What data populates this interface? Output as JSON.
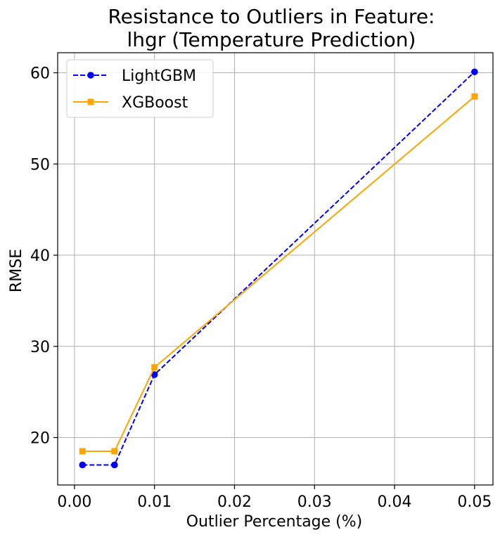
{
  "chart_data": {
    "type": "line",
    "title_line1": "Resistance to Outliers in Feature:",
    "title_line2": "lhgr (Temperature Prediction)",
    "xlabel": "Outlier Percentage (%)",
    "ylabel": "RMSE",
    "xlim": [
      -0.0021,
      0.0523
    ],
    "ylim": [
      14.8,
      62.2
    ],
    "xticks": [
      0.0,
      0.01,
      0.02,
      0.03,
      0.04,
      0.05
    ],
    "xtick_labels": [
      "0.00",
      "0.01",
      "0.02",
      "0.03",
      "0.04",
      "0.05"
    ],
    "yticks": [
      20,
      30,
      40,
      50,
      60
    ],
    "ytick_labels": [
      "20",
      "30",
      "40",
      "50",
      "60"
    ],
    "grid": true,
    "legend_position": "upper-left",
    "x": [
      0.001,
      0.005,
      0.01,
      0.05
    ],
    "series": [
      {
        "name": "LightGBM",
        "values": [
          17.0,
          17.0,
          26.9,
          60.1
        ],
        "color": "#0000ff",
        "marker": "circle",
        "linestyle": "dashed"
      },
      {
        "name": "XGBoost",
        "values": [
          18.5,
          18.5,
          27.7,
          57.4
        ],
        "color": "#ffa500",
        "marker": "square",
        "linestyle": "solid"
      }
    ]
  }
}
